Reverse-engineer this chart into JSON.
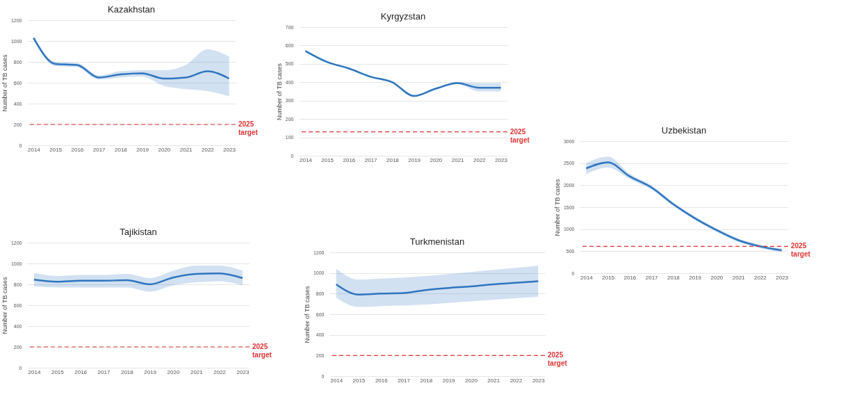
{
  "chart_data": [
    {
      "type": "line",
      "title": "Kazakhstan",
      "ylabel": "Number of TB cases",
      "categories": [
        "2014",
        "2015",
        "2016",
        "2017",
        "2018",
        "2019",
        "2020",
        "2021",
        "2022",
        "2023"
      ],
      "series": [
        {
          "color": "#2e75c0",
          "values": [
            1030,
            780,
            770,
            650,
            680,
            690,
            640,
            650,
            710,
            640
          ],
          "lower": [
            1010,
            760,
            750,
            630,
            650,
            660,
            570,
            540,
            520,
            470
          ],
          "upper": [
            1050,
            800,
            790,
            670,
            710,
            720,
            720,
            770,
            920,
            850
          ]
        }
      ],
      "ylim": [
        0,
        1200
      ],
      "yticks": [
        0,
        200,
        400,
        600,
        800,
        1000,
        1200
      ],
      "grid": "y",
      "ref_lines": [
        {
          "axis": "y",
          "value": 200,
          "label": "2025 target",
          "color": "#e03131",
          "line_style": "dashed"
        }
      ]
    },
    {
      "type": "line",
      "title": "Kyrgyzstan",
      "ylabel": "Number of TB cases",
      "categories": [
        "2014",
        "2015",
        "2016",
        "2017",
        "2018",
        "2019",
        "2020",
        "2021",
        "2022",
        "2023"
      ],
      "series": [
        {
          "color": "#2e75c0",
          "values": [
            570,
            510,
            475,
            430,
            400,
            325,
            365,
            395,
            370,
            370
          ],
          "lower": [
            565,
            505,
            470,
            425,
            395,
            320,
            360,
            390,
            350,
            350
          ],
          "upper": [
            575,
            515,
            480,
            435,
            405,
            330,
            370,
            400,
            395,
            395
          ]
        }
      ],
      "ylim": [
        0,
        700
      ],
      "yticks": [
        0,
        100,
        200,
        300,
        400,
        500,
        600,
        700
      ],
      "grid": "y",
      "ref_lines": [
        {
          "axis": "y",
          "value": 130,
          "label": "2025 target",
          "color": "#e03131",
          "line_style": "dashed"
        }
      ]
    },
    {
      "type": "line",
      "title": "Uzbekistan",
      "ylabel": "Number of TB cases",
      "categories": [
        "2014",
        "2015",
        "2016",
        "2017",
        "2018",
        "2019",
        "2020",
        "2021",
        "2022",
        "2023"
      ],
      "series": [
        {
          "color": "#2e75c0",
          "values": [
            2380,
            2520,
            2200,
            1950,
            1570,
            1250,
            980,
            750,
            610,
            520
          ],
          "lower": [
            2250,
            2400,
            2140,
            1900,
            1530,
            1210,
            940,
            710,
            570,
            480
          ],
          "upper": [
            2500,
            2650,
            2260,
            2000,
            1610,
            1290,
            1020,
            790,
            650,
            560
          ]
        }
      ],
      "ylim": [
        0,
        3000
      ],
      "yticks": [
        0,
        500,
        1000,
        1500,
        2000,
        2500,
        3000
      ],
      "grid": "y",
      "ref_lines": [
        {
          "axis": "y",
          "value": 610,
          "label": "2025 target",
          "color": "#e03131",
          "line_style": "dashed"
        }
      ]
    },
    {
      "type": "line",
      "title": "Tajikistan",
      "ylabel": "Number of TB cases",
      "categories": [
        "2014",
        "2015",
        "2016",
        "2017",
        "2018",
        "2019",
        "2020",
        "2021",
        "2022",
        "2023"
      ],
      "series": [
        {
          "color": "#2e75c0",
          "values": [
            845,
            825,
            835,
            835,
            840,
            800,
            865,
            900,
            905,
            860
          ],
          "lower": [
            780,
            770,
            770,
            770,
            770,
            730,
            790,
            820,
            830,
            790
          ],
          "upper": [
            910,
            880,
            890,
            890,
            900,
            860,
            930,
            980,
            980,
            930
          ]
        }
      ],
      "ylim": [
        0,
        1200
      ],
      "yticks": [
        0,
        200,
        400,
        600,
        800,
        1000,
        1200
      ],
      "grid": "y",
      "ref_lines": [
        {
          "axis": "y",
          "value": 200,
          "label": "2025 target",
          "color": "#e03131",
          "line_style": "dashed"
        }
      ]
    },
    {
      "type": "line",
      "title": "Turkmenistan",
      "ylabel": "Number of TB cases",
      "categories": [
        "2014",
        "2015",
        "2016",
        "2017",
        "2018",
        "2019",
        "2020",
        "2021",
        "2022",
        "2023"
      ],
      "series": [
        {
          "color": "#2e75c0",
          "values": [
            890,
            790,
            800,
            805,
            835,
            855,
            870,
            890,
            905,
            920
          ],
          "lower": [
            760,
            670,
            680,
            685,
            695,
            710,
            725,
            740,
            755,
            770
          ],
          "upper": [
            1040,
            935,
            945,
            955,
            970,
            990,
            1010,
            1030,
            1050,
            1070
          ]
        }
      ],
      "ylim": [
        0,
        1200
      ],
      "yticks": [
        0,
        200,
        400,
        600,
        800,
        1000,
        1200
      ],
      "grid": "y",
      "ref_lines": [
        {
          "axis": "y",
          "value": 200,
          "label": "2025 target",
          "color": "#e03131",
          "line_style": "dashed"
        }
      ]
    }
  ]
}
